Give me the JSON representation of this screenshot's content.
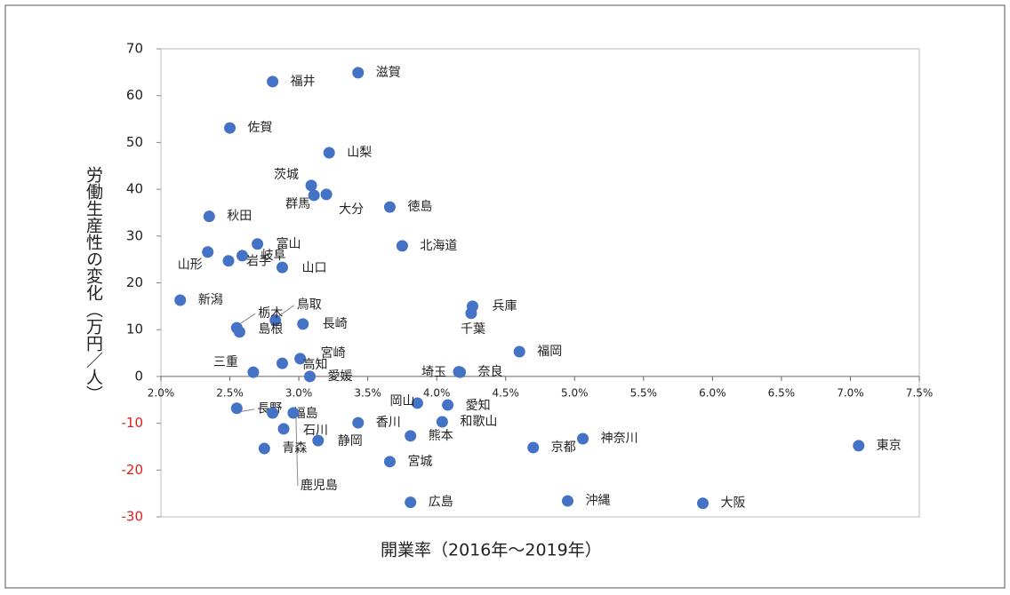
{
  "chart_data": {
    "type": "scatter",
    "x_label": "開業率（2016年～2019年）",
    "y_label": "労働生産性の変化（万円／人）",
    "labels": [
      "福井",
      "滋賀",
      "佐賀",
      "山梨",
      "茨城",
      "群馬",
      "大分",
      "徳島",
      "秋田",
      "北海道",
      "富山",
      "山形",
      "岐阜",
      "岩手",
      "山口",
      "新潟",
      "兵庫",
      "千葉",
      "鳥取",
      "長崎",
      "栃木",
      "島根",
      "福岡",
      "宮崎",
      "高知",
      "三重",
      "埼玉",
      "奈良",
      "愛媛",
      "岡山",
      "愛知",
      "長野",
      "福島",
      "鹿児島",
      "香川",
      "和歌山",
      "石川",
      "熊本",
      "静岡",
      "神奈川",
      "京都",
      "東京",
      "青森",
      "宮城",
      "沖縄",
      "広島",
      "大阪"
    ],
    "x": [
      2.81,
      3.43,
      2.5,
      3.22,
      3.09,
      3.11,
      3.2,
      3.66,
      2.35,
      3.75,
      2.7,
      2.34,
      2.59,
      2.49,
      2.88,
      2.14,
      4.26,
      4.25,
      2.83,
      3.03,
      2.55,
      2.57,
      4.6,
      3.01,
      2.88,
      2.67,
      4.16,
      4.17,
      3.08,
      3.86,
      4.08,
      2.55,
      2.81,
      2.96,
      3.43,
      4.04,
      2.89,
      3.81,
      3.14,
      5.06,
      4.7,
      7.06,
      2.75,
      3.66,
      4.95,
      3.81,
      5.93
    ],
    "values": [
      63.0,
      64.9,
      53.1,
      47.8,
      40.8,
      38.7,
      38.9,
      36.2,
      34.2,
      27.9,
      28.3,
      26.6,
      25.8,
      24.7,
      23.3,
      16.3,
      15.0,
      13.5,
      12.0,
      11.2,
      10.4,
      9.5,
      5.3,
      3.8,
      2.8,
      0.9,
      1.0,
      0.9,
      0.0,
      -5.7,
      -6.1,
      -6.8,
      -7.8,
      -7.8,
      -9.9,
      -9.7,
      -11.2,
      -12.7,
      -13.7,
      -13.3,
      -15.2,
      -14.8,
      -15.4,
      -18.2,
      -26.6,
      -26.9,
      -27.1
    ],
    "color": "#4472c4",
    "negative_ytick_color": "#e02020",
    "xlim": [
      2.0,
      7.5
    ],
    "xticks": [
      {
        "value": 2.0,
        "label": "2.0%"
      },
      {
        "value": 2.5,
        "label": "2.5%"
      },
      {
        "value": 3.0,
        "label": "3.0%"
      },
      {
        "value": 3.5,
        "label": "3.5%"
      },
      {
        "value": 4.0,
        "label": "4.0%"
      },
      {
        "value": 4.5,
        "label": "4.5%"
      },
      {
        "value": 5.0,
        "label": "5.0%"
      },
      {
        "value": 5.5,
        "label": "5.5%"
      },
      {
        "value": 6.0,
        "label": "6.0%"
      },
      {
        "value": 6.5,
        "label": "6.5%"
      },
      {
        "value": 7.0,
        "label": "7.0%"
      },
      {
        "value": 7.5,
        "label": "7.5%"
      }
    ],
    "ylim": [
      -30,
      70
    ],
    "yticks": [
      -30,
      -20,
      -10,
      0,
      10,
      20,
      30,
      40,
      50,
      60,
      70
    ]
  }
}
